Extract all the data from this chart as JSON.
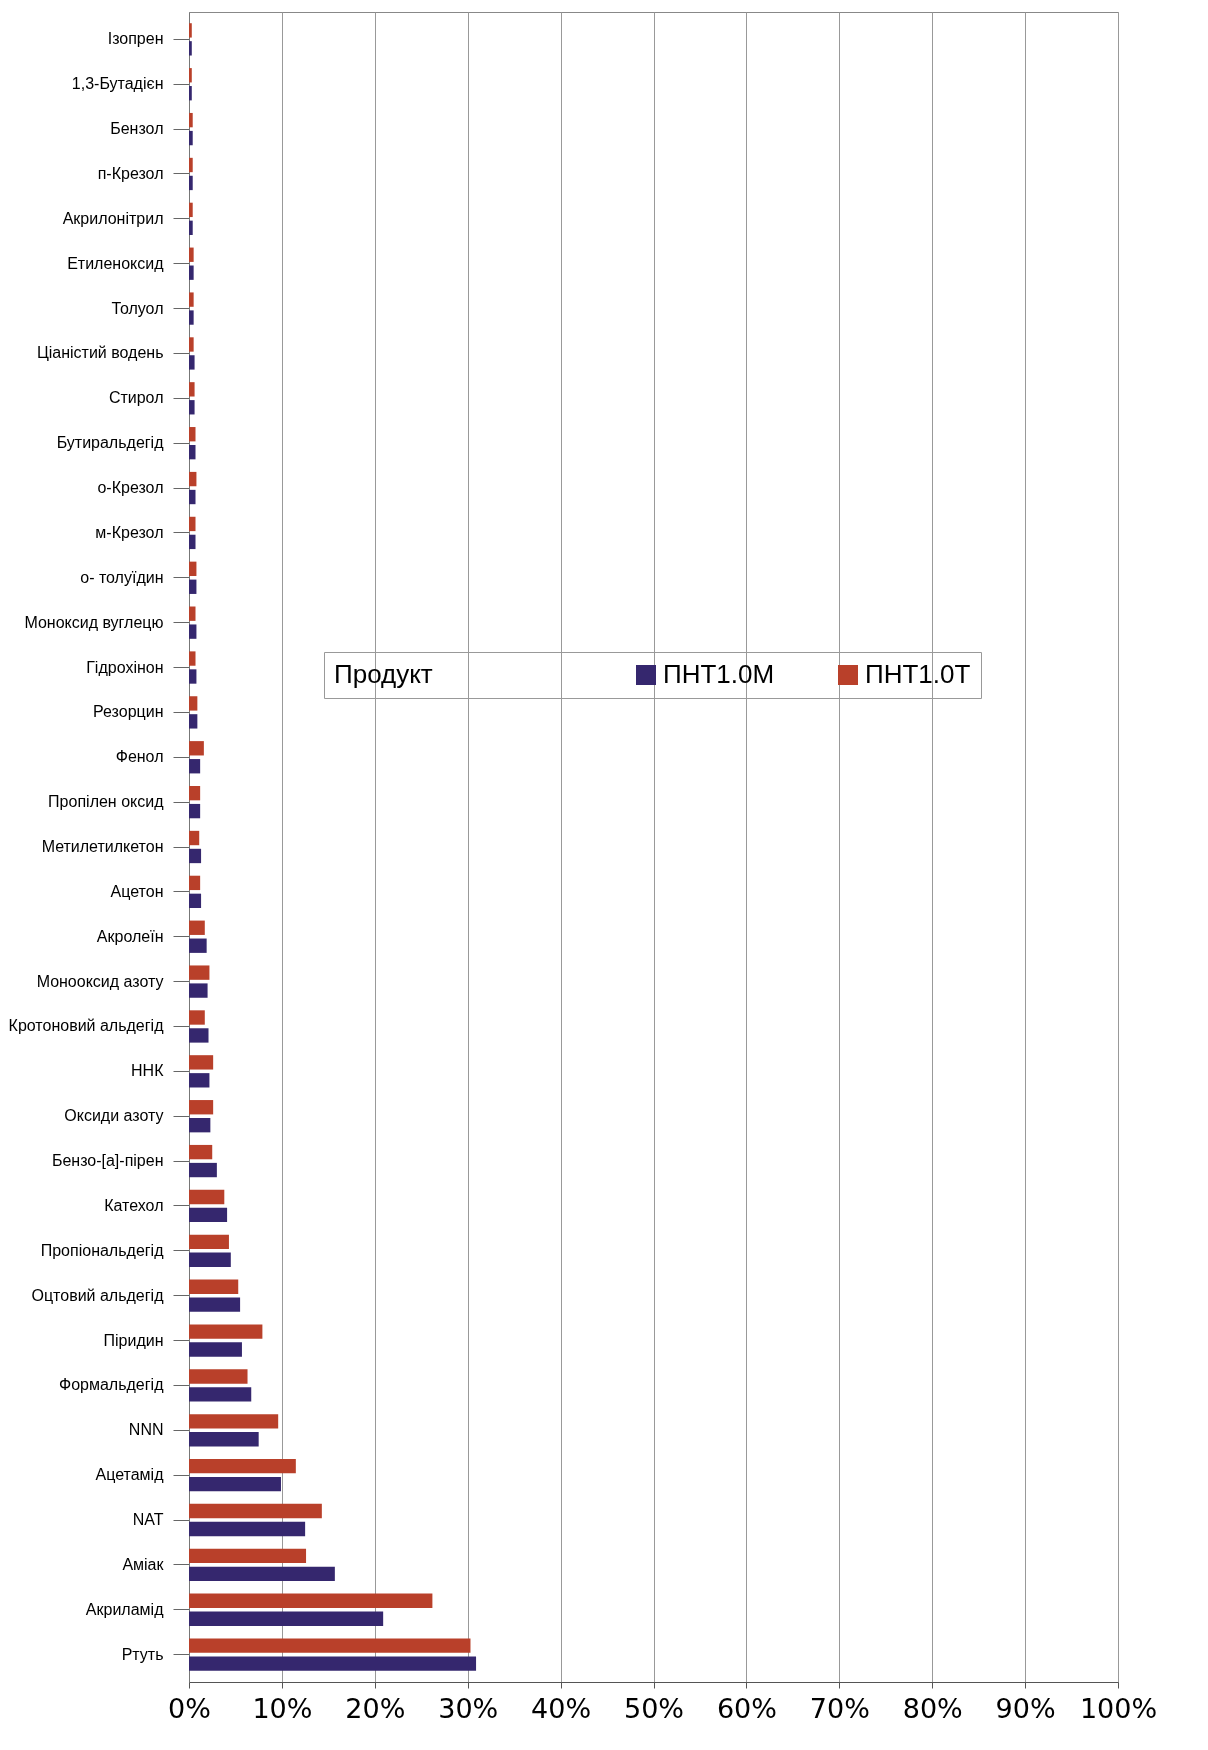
{
  "chart_data": {
    "type": "bar",
    "orientation": "horizontal",
    "legend_title": "Продукт",
    "legend": "center",
    "categories": [
      "Ізопрен",
      "1,3-Бутадієн",
      "Бензол",
      "п-Крезол",
      "Акрилонітрил",
      "Етиленоксид",
      "Толуол",
      "Ціаністий водень",
      "Стирол",
      "Бутиральдегід",
      "о-Крезол",
      "м-Крезол",
      "о- толуїдин",
      "Моноксид вуглецю",
      "Гідрохінон",
      "Резорцин",
      "Фенол",
      "Пропілен оксид",
      "Метилетилкетон",
      "Ацетон",
      "Акролеїн",
      "Монооксид азоту",
      "Кротоновий альдегід",
      "ННК",
      "Оксиди азоту",
      "Бензо-[a]-пірен",
      "Катехол",
      "Пропіональдегід",
      "Оцтовий альдегід",
      "Піридин",
      "Формальдегід",
      "NNN",
      "Ацетамід",
      "NAT",
      "Аміак",
      "Акриламід",
      "Ртуть"
    ],
    "series": [
      {
        "name": "ПНТ1.0М",
        "color": "#35276e",
        "values": [
          0.3,
          0.3,
          0.4,
          0.4,
          0.4,
          0.5,
          0.5,
          0.6,
          0.6,
          0.7,
          0.7,
          0.7,
          0.8,
          0.8,
          0.8,
          0.9,
          1.2,
          1.2,
          1.3,
          1.3,
          1.9,
          2.0,
          2.1,
          2.2,
          2.3,
          3.0,
          4.1,
          4.5,
          5.5,
          5.7,
          6.7,
          7.5,
          9.9,
          12.5,
          15.7,
          20.9,
          30.9
        ]
      },
      {
        "name": "ПНТ1.0Т",
        "color": "#b9402a",
        "values": [
          0.3,
          0.3,
          0.4,
          0.4,
          0.4,
          0.5,
          0.5,
          0.5,
          0.6,
          0.7,
          0.8,
          0.7,
          0.8,
          0.7,
          0.7,
          0.9,
          1.6,
          1.2,
          1.1,
          1.2,
          1.7,
          2.2,
          1.7,
          2.6,
          2.6,
          2.5,
          3.8,
          4.3,
          5.3,
          7.9,
          6.3,
          9.6,
          11.5,
          14.3,
          12.6,
          26.2,
          30.3
        ]
      }
    ],
    "xlim": [
      0,
      100
    ],
    "xticks": [
      {
        "value": 0,
        "label": "0%"
      },
      {
        "value": 10,
        "label": "10%"
      },
      {
        "value": 20,
        "label": "20%"
      },
      {
        "value": 30,
        "label": "30%"
      },
      {
        "value": 40,
        "label": "40%"
      },
      {
        "value": 50,
        "label": "50%"
      },
      {
        "value": 60,
        "label": "60%"
      },
      {
        "value": 70,
        "label": "70%"
      },
      {
        "value": 80,
        "label": "80%"
      },
      {
        "value": 90,
        "label": "90%"
      },
      {
        "value": 100,
        "label": "100%"
      }
    ],
    "grid": "x"
  }
}
